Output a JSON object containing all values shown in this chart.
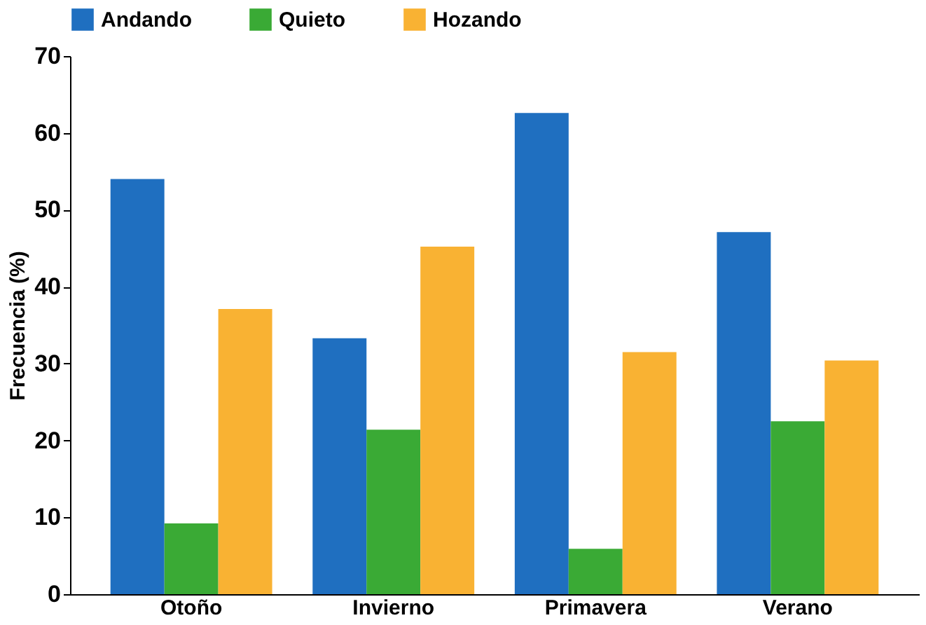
{
  "chart_data": {
    "type": "bar",
    "ylabel": "Frecuencia (%)",
    "categories": [
      "Otoño",
      "Invierno",
      "Primavera",
      "Verano"
    ],
    "series": [
      {
        "name": "Andando",
        "color": "#1f6fc0",
        "values": [
          54.0,
          33.3,
          62.6,
          47.1
        ]
      },
      {
        "name": "Quieto",
        "color": "#3aaa35",
        "values": [
          9.2,
          21.4,
          5.9,
          22.5
        ]
      },
      {
        "name": "Hozando",
        "color": "#f9b233",
        "values": [
          37.1,
          45.2,
          31.5,
          30.4
        ]
      }
    ],
    "ylim": [
      0,
      70
    ],
    "yticks": [
      0,
      10,
      20,
      30,
      40,
      50,
      60,
      70
    ],
    "grid": false,
    "legend": "top"
  }
}
